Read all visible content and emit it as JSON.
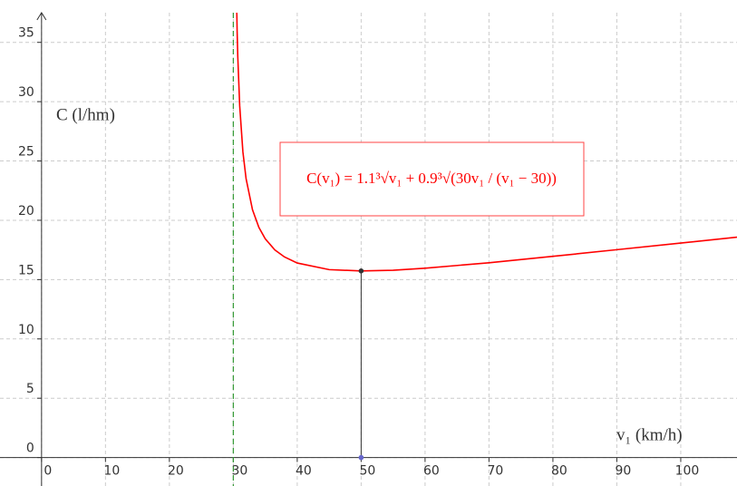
{
  "chart_data": {
    "type": "line",
    "ylabel": "C (l/hm)",
    "xlabel": "v₁ (km/h)",
    "formula": "C(v₁) = 1.1³√v₁ + 0.9³√(30v₁ / (v₁ − 30))",
    "x": [
      30.4,
      30.6,
      30.7,
      31,
      31.5,
      32,
      33,
      34,
      35,
      36.5,
      38,
      40,
      45,
      50,
      55,
      60,
      70,
      80,
      90,
      100,
      108.8
    ],
    "series": [
      {
        "color": "#ff0000",
        "values": [
          42.15,
          35.88,
          33.8,
          29.64,
          25.77,
          23.5,
          20.89,
          19.4,
          18.44,
          17.5,
          16.91,
          16.4,
          15.84,
          15.73,
          15.79,
          15.96,
          16.42,
          16.96,
          17.52,
          18.08,
          18.58
        ]
      }
    ],
    "asymptote_x": 30,
    "asymptote_color": "#339933",
    "markers": [
      {
        "x": 50,
        "y": 15.73,
        "color": "#333333"
      },
      {
        "x": 50,
        "y": 0,
        "color": "#6666cc"
      }
    ],
    "xlim": [
      -6.5,
      108.8
    ],
    "ylim": [
      -2.4,
      37.5
    ],
    "xticks": [
      0,
      10,
      20,
      30,
      40,
      50,
      60,
      70,
      80,
      90,
      100
    ],
    "yticks": [
      0,
      5,
      10,
      15,
      20,
      25,
      30,
      35
    ],
    "grid": true
  }
}
